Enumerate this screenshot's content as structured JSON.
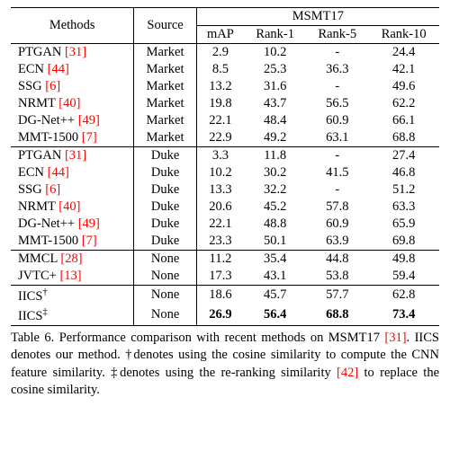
{
  "header": {
    "methods": "Methods",
    "source": "Source",
    "metric_group": "MSMT17",
    "metrics": [
      "mAP",
      "Rank-1",
      "Rank-5",
      "Rank-10"
    ]
  },
  "groups": [
    {
      "rows": [
        {
          "method": "PTGAN",
          "ref": "[31]",
          "source": "Market",
          "vals": [
            "2.9",
            "10.2",
            "-",
            "24.4"
          ]
        },
        {
          "method": "ECN",
          "ref": "[44]",
          "source": "Market",
          "vals": [
            "8.5",
            "25.3",
            "36.3",
            "42.1"
          ]
        },
        {
          "method": "SSG",
          "ref": "[6]",
          "source": "Market",
          "vals": [
            "13.2",
            "31.6",
            "-",
            "49.6"
          ]
        },
        {
          "method": "NRMT",
          "ref": "[40]",
          "source": "Market",
          "vals": [
            "19.8",
            "43.7",
            "56.5",
            "62.2"
          ]
        },
        {
          "method": "DG-Net++",
          "ref": "[49]",
          "source": "Market",
          "vals": [
            "22.1",
            "48.4",
            "60.9",
            "66.1"
          ]
        },
        {
          "method": "MMT-1500",
          "ref": "[7]",
          "source": "Market",
          "vals": [
            "22.9",
            "49.2",
            "63.1",
            "68.8"
          ]
        }
      ]
    },
    {
      "rows": [
        {
          "method": "PTGAN",
          "ref": "[31]",
          "source": "Duke",
          "vals": [
            "3.3",
            "11.8",
            "-",
            "27.4"
          ]
        },
        {
          "method": "ECN",
          "ref": "[44]",
          "source": "Duke",
          "vals": [
            "10.2",
            "30.2",
            "41.5",
            "46.8"
          ]
        },
        {
          "method": "SSG",
          "ref": "[6]",
          "source": "Duke",
          "vals": [
            "13.3",
            "32.2",
            "-",
            "51.2"
          ]
        },
        {
          "method": "NRMT",
          "ref": "[40]",
          "source": "Duke",
          "vals": [
            "20.6",
            "45.2",
            "57.8",
            "63.3"
          ]
        },
        {
          "method": "DG-Net++",
          "ref": "[49]",
          "source": "Duke",
          "vals": [
            "22.1",
            "48.8",
            "60.9",
            "65.9"
          ]
        },
        {
          "method": "MMT-1500",
          "ref": "[7]",
          "source": "Duke",
          "vals": [
            "23.3",
            "50.1",
            "63.9",
            "69.8"
          ]
        }
      ]
    },
    {
      "rows": [
        {
          "method": "MMCL",
          "ref": "[28]",
          "source": "None",
          "vals": [
            "11.2",
            "35.4",
            "44.8",
            "49.8"
          ]
        },
        {
          "method": "JVTC+",
          "ref": "[13]",
          "source": "None",
          "vals": [
            "17.3",
            "43.1",
            "53.8",
            "59.4"
          ]
        }
      ]
    },
    {
      "rows": [
        {
          "method": "IICS",
          "sup": "†",
          "ref": "",
          "source": "None",
          "vals": [
            "18.6",
            "45.7",
            "57.7",
            "62.8"
          ]
        },
        {
          "method": "IICS",
          "sup": "‡",
          "ref": "",
          "source": "None",
          "vals": [
            "26.9",
            "56.4",
            "68.8",
            "73.4"
          ],
          "bold": true
        }
      ]
    }
  ],
  "caption": {
    "prefix": "Table 6. Performance comparison with recent methods on MSMT17 ",
    "ref1": "[31]",
    "mid1": ". IICS denotes our method. †denotes using the cosine similarity to compute the CNN feature similarity. ‡denotes using the re-ranking similarity ",
    "ref2": "[42]",
    "suffix": " to replace the cosine similarity."
  }
}
